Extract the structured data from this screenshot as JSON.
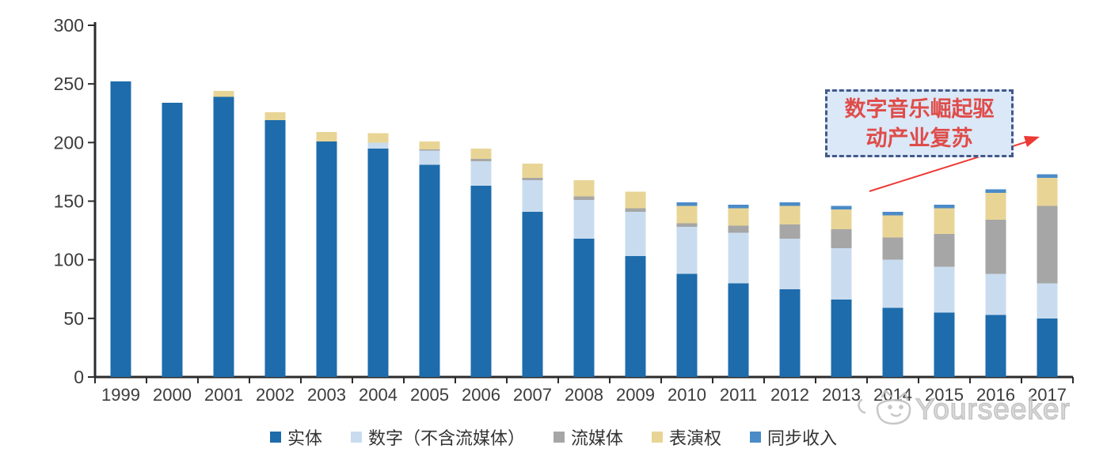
{
  "chart_data": {
    "type": "bar",
    "stacked": true,
    "title": "",
    "xlabel": "",
    "ylabel": "",
    "grid": false,
    "legend_position": "bottom",
    "categories": [
      "1999",
      "2000",
      "2001",
      "2002",
      "2003",
      "2004",
      "2005",
      "2006",
      "2007",
      "2008",
      "2009",
      "2010",
      "2011",
      "2012",
      "2013",
      "2014",
      "2015",
      "2016",
      "2017"
    ],
    "y_axis": {
      "min": 0,
      "max": 300,
      "step": 50,
      "ticks": [
        0,
        50,
        100,
        150,
        200,
        250,
        300
      ]
    },
    "series": [
      {
        "name": "实体",
        "color": "#1e6cab",
        "values": [
          252,
          234,
          239,
          219,
          201,
          195,
          181,
          163,
          141,
          118,
          103,
          88,
          80,
          75,
          66,
          59,
          55,
          53,
          50
        ]
      },
      {
        "name": "数字（不含流媒体）",
        "color": "#c9dcef",
        "values": [
          0,
          0,
          0,
          0,
          0,
          5,
          12,
          21,
          27,
          33,
          38,
          40,
          43,
          43,
          44,
          41,
          39,
          35,
          30
        ]
      },
      {
        "name": "流媒体",
        "color": "#a6a6a6",
        "values": [
          0,
          0,
          0,
          0,
          0,
          0,
          1,
          2,
          2,
          3,
          3,
          3,
          6,
          12,
          16,
          19,
          28,
          46,
          66
        ]
      },
      {
        "name": "表演权",
        "color": "#e8d596",
        "values": [
          0,
          0,
          5,
          7,
          8,
          8,
          7,
          9,
          12,
          14,
          14,
          15,
          15,
          16,
          17,
          19,
          22,
          23,
          24
        ]
      },
      {
        "name": "同步收入",
        "color": "#4b8bc8",
        "values": [
          0,
          0,
          0,
          0,
          0,
          0,
          0,
          0,
          0,
          0,
          0,
          3,
          3,
          3,
          3,
          3,
          3,
          3,
          3
        ]
      }
    ],
    "totals": [
      252,
      234,
      244,
      226,
      209,
      208,
      201,
      195,
      182,
      168,
      158,
      149,
      147,
      149,
      146,
      141,
      147,
      160,
      173
    ]
  },
  "annotation": {
    "line1": "数字音乐崛起驱",
    "line2": "动产业复苏",
    "text_color": "#df4c49",
    "box_fill": "#dbe8f8",
    "border_color": "#44598a",
    "arrow_color": "#ec3a35"
  },
  "axis_style": {
    "line_color": "#2b2b2b",
    "label_color": "#3c3c3c"
  },
  "watermark": {
    "text": "Yourseeker",
    "icon": "cat-logo-icon",
    "color": "#bdbdbd"
  }
}
